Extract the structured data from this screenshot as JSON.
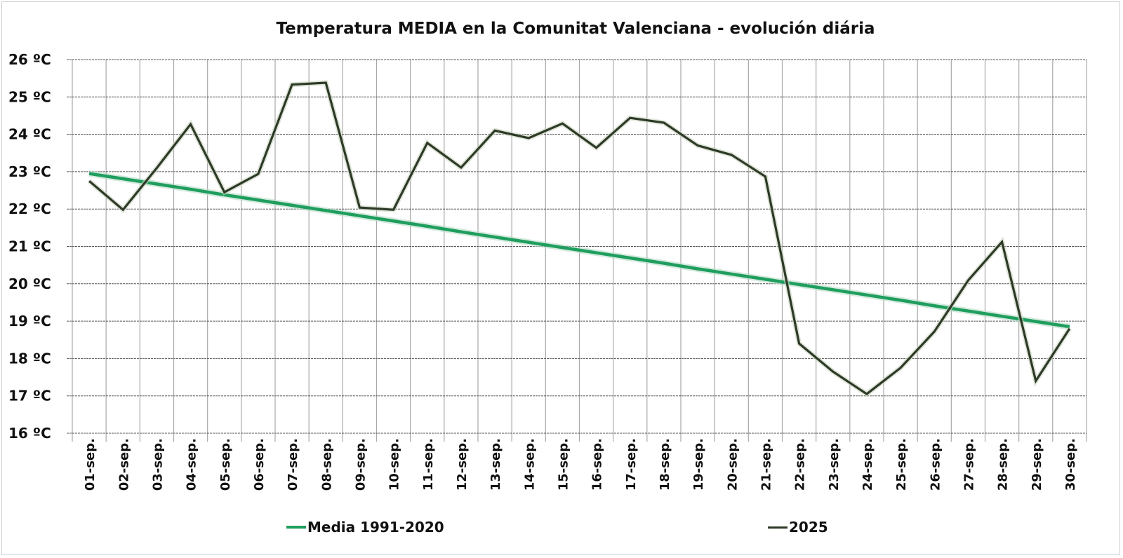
{
  "chart_data": {
    "type": "line",
    "title": "Temperatura MEDIA en la Comunitat Valenciana - evolución diária",
    "xlabel": "",
    "ylabel": "",
    "ylim": [
      16,
      26
    ],
    "y_ticks": [
      "16 ºC",
      "17 ºC",
      "18 ºC",
      "19 ºC",
      "20 ºC",
      "21 ºC",
      "22 ºC",
      "23 ºC",
      "24 ºC",
      "25 ºC",
      "26 ºC"
    ],
    "y_tick_values": [
      16,
      17,
      18,
      19,
      20,
      21,
      22,
      23,
      24,
      25,
      26
    ],
    "categories": [
      "01-sep.",
      "02-sep.",
      "03-sep.",
      "04-sep.",
      "05-sep.",
      "06-sep.",
      "07-sep.",
      "08-sep.",
      "09-sep.",
      "10-sep.",
      "11-sep.",
      "12-sep.",
      "13-sep.",
      "14-sep.",
      "15-sep.",
      "16-sep.",
      "17-sep.",
      "18-sep.",
      "19-sep.",
      "20-sep.",
      "21-sep.",
      "22-sep.",
      "23-sep.",
      "24-sep.",
      "25-sep.",
      "26-sep.",
      "27-sep.",
      "28-sep.",
      "29-sep.",
      "30-sep."
    ],
    "grid": true,
    "legend_placement": "bottom",
    "series": [
      {
        "name": "Media 1991-2020",
        "color": "#1f9e5e",
        "values": [
          22.95,
          22.81,
          22.67,
          22.53,
          22.38,
          22.24,
          22.1,
          21.96,
          21.82,
          21.68,
          21.54,
          21.39,
          21.25,
          21.11,
          20.97,
          20.83,
          20.69,
          20.55,
          20.4,
          20.26,
          20.12,
          19.98,
          19.84,
          19.7,
          19.56,
          19.41,
          19.27,
          19.13,
          18.99,
          18.85
        ]
      },
      {
        "name": "2025",
        "color": "#2d3a27",
        "values": [
          22.75,
          21.98,
          23.1,
          24.27,
          22.45,
          22.94,
          25.33,
          25.38,
          22.04,
          21.98,
          23.77,
          23.11,
          24.1,
          23.9,
          24.29,
          23.64,
          24.44,
          24.31,
          23.7,
          23.45,
          22.87,
          18.4,
          17.65,
          17.05,
          17.75,
          18.72,
          20.09,
          21.12,
          17.4,
          18.8
        ]
      }
    ]
  }
}
